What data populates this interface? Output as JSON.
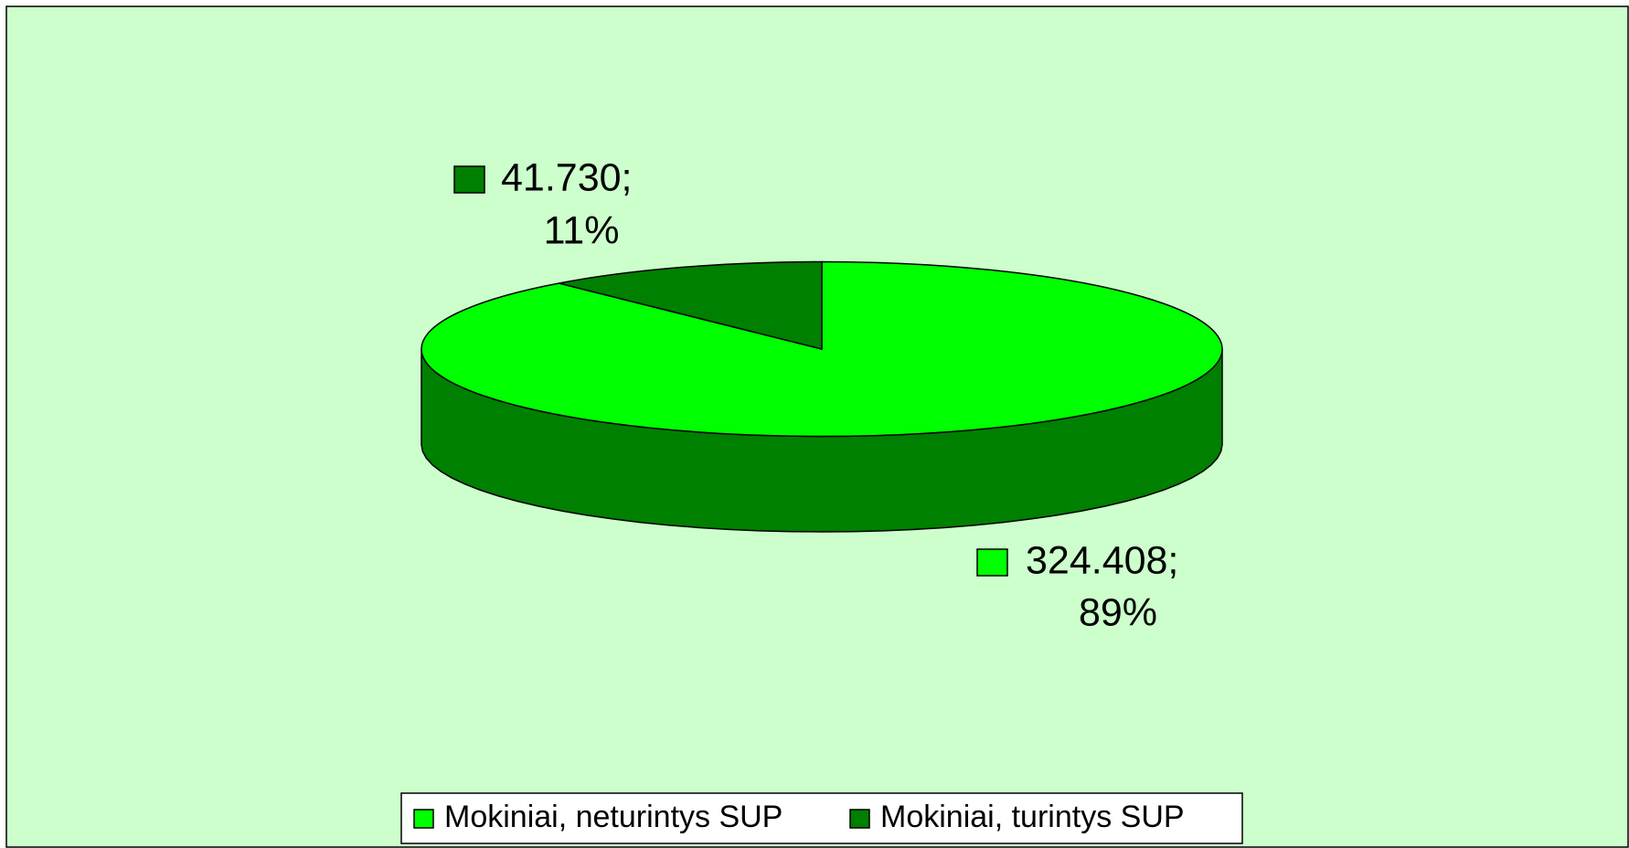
{
  "chart_data": {
    "type": "pie3d",
    "categories": [
      "Mokiniai, neturintys SUP",
      "Mokiniai, turintys SUP"
    ],
    "values": [
      324408,
      41730
    ],
    "value_labels": [
      "324.408;",
      "41.730;"
    ],
    "percents": [
      89,
      11
    ],
    "percent_labels": [
      "89%",
      "11%"
    ],
    "colors": [
      "#00ff00",
      "#008000"
    ],
    "background": "#ccffcc",
    "legend": "bottom"
  }
}
